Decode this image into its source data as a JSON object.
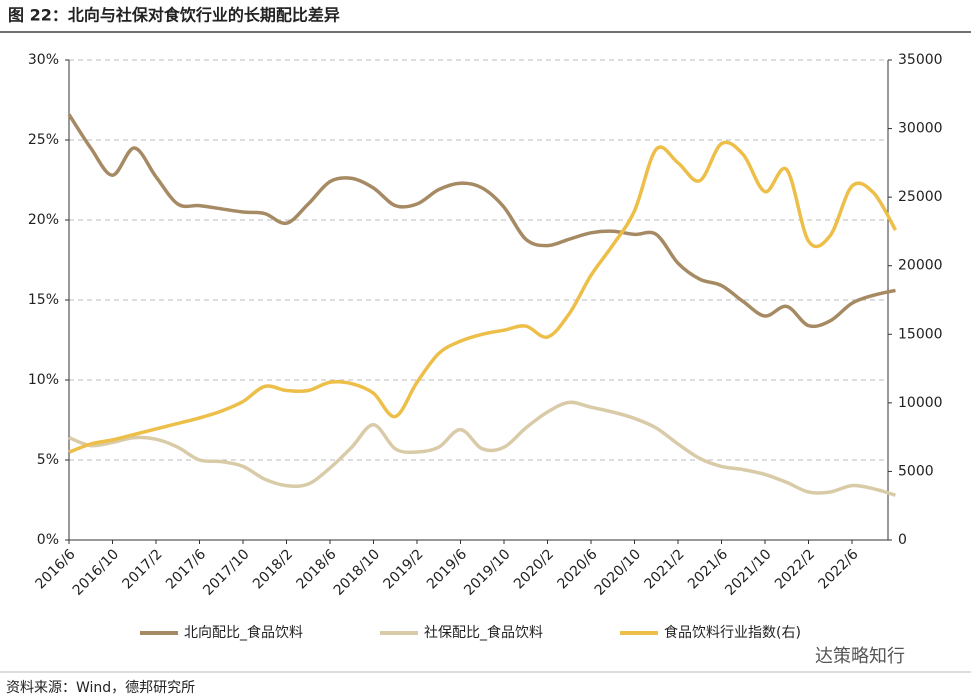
{
  "header": {
    "title": "图 22：北向与社保对食饮行业的长期配比差异"
  },
  "chart_data": {
    "type": "line",
    "categories": [
      "2016/6",
      null,
      "2016/10",
      null,
      "2017/2",
      null,
      "2017/6",
      null,
      "2017/10",
      null,
      "2018/2",
      null,
      "2018/6",
      null,
      "2018/10",
      null,
      "2019/2",
      null,
      "2019/6",
      null,
      "2019/10",
      null,
      "2020/2",
      null,
      "2020/6",
      null,
      "2020/10",
      null,
      "2021/2",
      null,
      "2021/6",
      null,
      "2021/10",
      null,
      "2022/2",
      null,
      "2022/6",
      null,
      null
    ],
    "series": [
      {
        "name": "北向配比_食品饮料",
        "color": "#a68a64",
        "axis": "y",
        "values": [
          26.6,
          24.5,
          22.8,
          24.5,
          22.7,
          21.0,
          20.9,
          20.7,
          20.5,
          20.4,
          19.8,
          21.0,
          22.4,
          22.6,
          22.0,
          20.9,
          21.0,
          21.9,
          22.3,
          22.0,
          20.8,
          18.8,
          18.4,
          18.8,
          19.2,
          19.3,
          19.1,
          19.1,
          17.3,
          16.3,
          15.9,
          14.9,
          14.0,
          14.6,
          13.4,
          13.7,
          14.8,
          15.3,
          15.6
        ]
      },
      {
        "name": "社保配比_食品饮料",
        "color": "#d9cba8",
        "axis": "y",
        "values": [
          6.4,
          5.9,
          6.1,
          6.4,
          6.3,
          5.8,
          5.0,
          4.9,
          4.6,
          3.8,
          3.4,
          3.5,
          4.5,
          5.8,
          7.2,
          5.7,
          5.5,
          5.8,
          6.9,
          5.7,
          5.8,
          7.0,
          8.0,
          8.6,
          8.3,
          8.0,
          7.6,
          7.0,
          6.0,
          5.1,
          4.6,
          4.4,
          4.1,
          3.6,
          3.0,
          3.0,
          3.4,
          3.2,
          2.8
        ]
      },
      {
        "name": "食品饮料行业指数(右)",
        "color": "#edbe48",
        "axis": "y2",
        "values": [
          6400,
          7000,
          7300,
          7700,
          8100,
          8500,
          8900,
          9400,
          10100,
          11200,
          10900,
          10900,
          11500,
          11400,
          10700,
          9000,
          11500,
          13600,
          14500,
          15000,
          15300,
          15600,
          14800,
          16500,
          19300,
          21500,
          24000,
          28500,
          27500,
          26200,
          28900,
          28100,
          25400,
          27000,
          21800,
          22200,
          25800,
          25300,
          22600
        ]
      }
    ],
    "ylim": [
      0,
      30
    ],
    "yticks": [
      {
        "value": 0,
        "label": "0%"
      },
      {
        "value": 5,
        "label": "5%"
      },
      {
        "value": 10,
        "label": "10%"
      },
      {
        "value": 15,
        "label": "15%"
      },
      {
        "value": 20,
        "label": "20%"
      },
      {
        "value": 25,
        "label": "25%"
      },
      {
        "value": 30,
        "label": "30%"
      }
    ],
    "y2lim": [
      0,
      35000
    ],
    "y2ticks": [
      0,
      5000,
      10000,
      15000,
      20000,
      25000,
      30000,
      35000
    ],
    "grid": true,
    "legend": "bottom"
  },
  "footer": {
    "source": "资料来源：Wind，德邦研究所",
    "watermark": "达策略知行"
  }
}
